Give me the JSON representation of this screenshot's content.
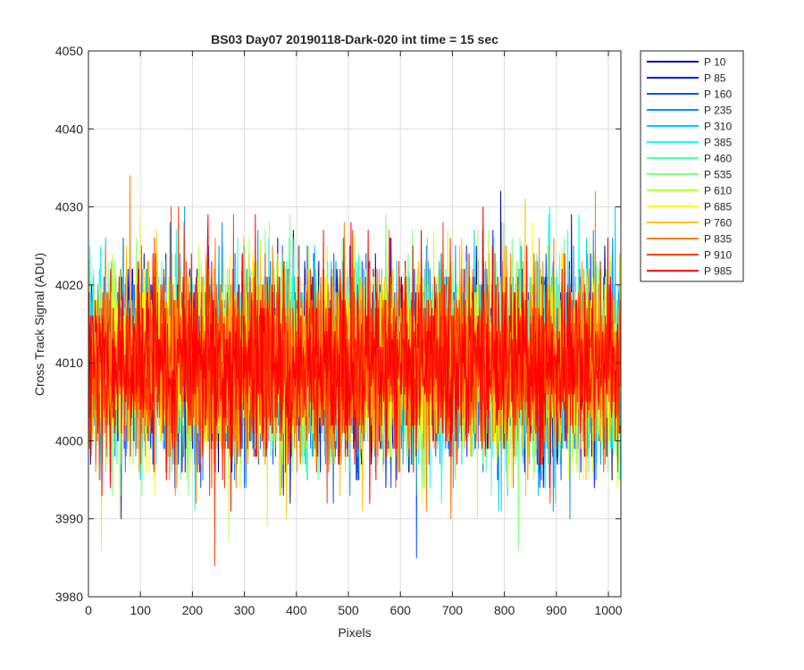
{
  "chart_data": {
    "type": "line",
    "title": "BS03 Day07 20190118-Dark-020 int time = 15 sec",
    "xlabel": "Pixels",
    "ylabel": "Cross Track Signal (ADU)",
    "xlim": [
      0,
      1024
    ],
    "ylim": [
      3980,
      4050
    ],
    "xticks": [
      0,
      100,
      200,
      300,
      400,
      500,
      600,
      700,
      800,
      900,
      1000
    ],
    "yticks": [
      3980,
      3990,
      4000,
      4010,
      4020,
      4030,
      4040,
      4050
    ],
    "grid": true,
    "legend_position": "outside-top-right",
    "num_points": 1024,
    "signal_mean": 4010,
    "signal_noise_sd": 6,
    "series": [
      {
        "name": "P 10",
        "color": "#00008f"
      },
      {
        "name": "P 85",
        "color": "#0010ff"
      },
      {
        "name": "P 160",
        "color": "#0050ff"
      },
      {
        "name": "P 235",
        "color": "#0090ff"
      },
      {
        "name": "P 310",
        "color": "#00c8ff"
      },
      {
        "name": "P 385",
        "color": "#10ffef"
      },
      {
        "name": "P 460",
        "color": "#50ffaf"
      },
      {
        "name": "P 535",
        "color": "#80ff80"
      },
      {
        "name": "P 610",
        "color": "#c0ff40"
      },
      {
        "name": "P 685",
        "color": "#ffff00"
      },
      {
        "name": "P 760",
        "color": "#ffc000"
      },
      {
        "name": "P 835",
        "color": "#ff8000"
      },
      {
        "name": "P 910",
        "color": "#ff4000"
      },
      {
        "name": "P 985",
        "color": "#ff0000"
      }
    ]
  }
}
